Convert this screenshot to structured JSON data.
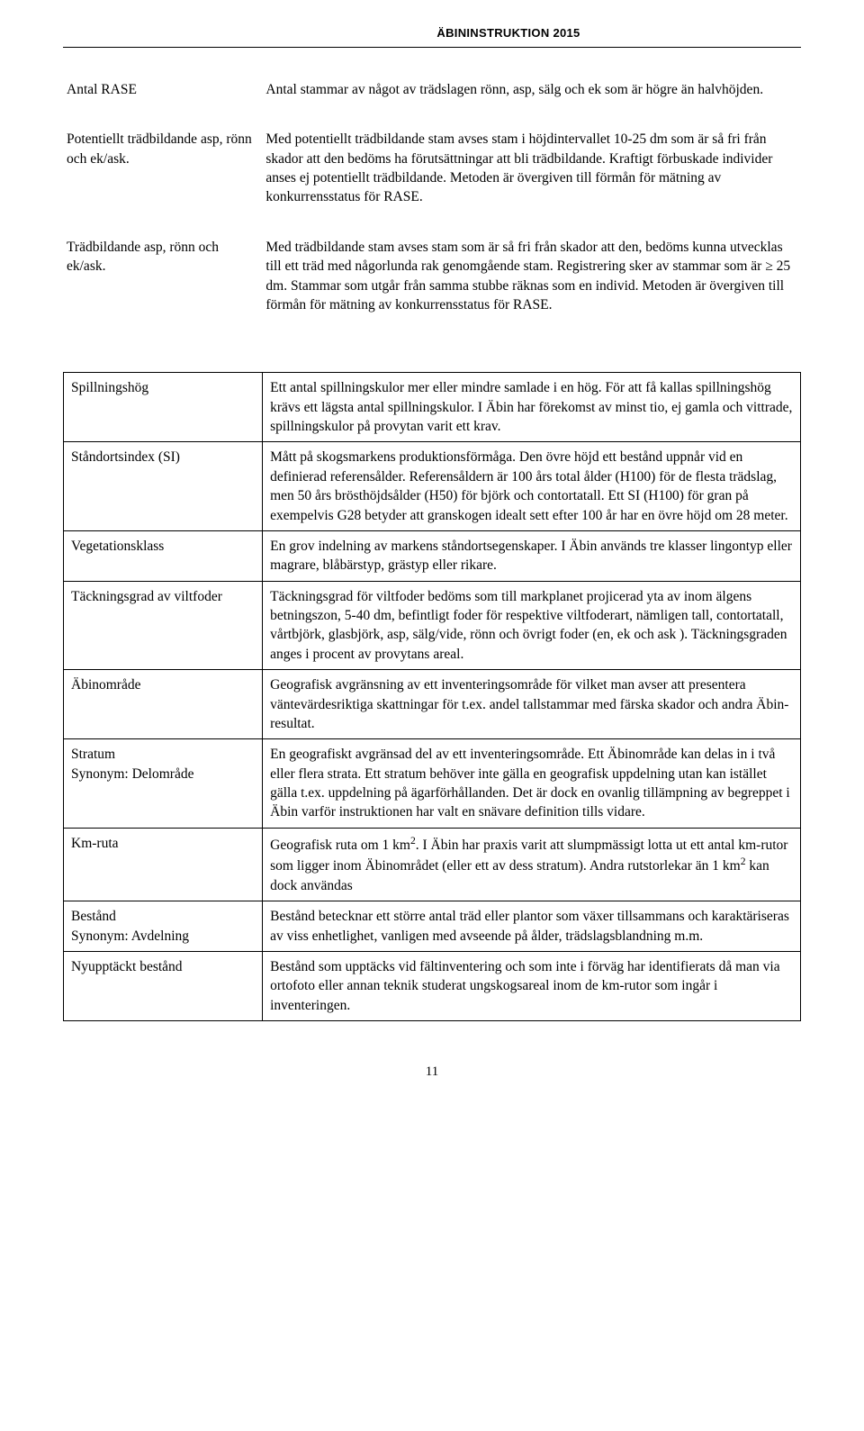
{
  "header": {
    "title": "ÄBININSTRUKTION 2015"
  },
  "page_number": "11",
  "top_rows": [
    {
      "term": "Antal RASE",
      "def": "Antal stammar av något av trädslagen rönn, asp, sälg och ek som är högre än halvhöjden."
    },
    {
      "term": "Potentiellt trädbildande asp, rönn och ek/ask.",
      "def": "Med potentiellt trädbildande stam avses stam i höjdintervallet 10-25 dm som är så fri från skador att den bedöms ha förutsättningar att bli trädbildande. Kraftigt förbuskade individer anses ej potentiellt trädbildande. Metoden är övergiven till förmån för mätning av konkurrensstatus för RASE."
    },
    {
      "term": "Trädbildande asp, rönn och ek/ask.",
      "def": "Med trädbildande stam avses stam som är så fri från skador att den, bedöms kunna utvecklas till ett träd med någorlunda rak genomgående stam. Registrering sker av stammar som är ≥ 25 dm. Stammar som utgår från samma stubbe räknas som en individ. Metoden är övergiven till förmån för mätning av konkurrensstatus för RASE."
    }
  ],
  "box_rows": [
    {
      "term": "Spillningshög",
      "def": "Ett antal spillningskulor mer eller mindre samlade i en hög. För att få kallas spillningshög krävs ett lägsta antal spillningskulor. I Äbin har förekomst av minst tio, ej gamla och vittrade, spillningskulor på provytan varit ett krav."
    },
    {
      "term": "Ståndortsindex (SI)",
      "def": "Mått på skogsmarkens produktionsförmåga. Den övre höjd ett bestånd uppnår vid en definierad referensålder. Referensåldern är 100 års total ålder (H100) för de flesta trädslag, men 50 års brösthöjdsålder (H50) för björk och contortatall. Ett SI (H100) för gran på exempelvis G28 betyder att granskogen idealt sett efter 100 år har en övre höjd om 28 meter."
    },
    {
      "term": "Vegetationsklass",
      "def": "En grov indelning av markens ståndortsegenskaper. I Äbin används tre klasser lingontyp eller magrare, blåbärstyp, grästyp eller rikare."
    },
    {
      "term": "Täckningsgrad av viltfoder",
      "def": "Täckningsgrad för viltfoder bedöms som till markplanet projicerad yta av inom älgens betningszon, 5-40 dm, befintligt foder för respektive viltfoderart, nämligen tall, contortatall, vårtbjörk, glasbjörk, asp, sälg/vide, rönn och övrigt foder (en, ek och ask ). Täckningsgraden anges i procent av provytans areal."
    },
    {
      "term": "Äbinområde",
      "def": "Geografisk avgränsning av ett inventeringsområde för vilket man avser att presentera väntevärdesriktiga skattningar för t.ex. andel tallstammar med färska skador och andra Äbin-resultat."
    },
    {
      "term": "Stratum\nSynonym: Delområde",
      "def": "En geografiskt avgränsad del av ett inventeringsområde. Ett Äbinområde kan delas in i två eller flera strata. Ett stratum behöver inte gälla en geografisk uppdelning utan kan istället gälla t.ex. uppdelning på ägarförhållanden. Det är dock en ovanlig tillämpning av begreppet i Äbin varför instruktionen har valt en snävare definition tills vidare."
    },
    {
      "term": "Km-ruta",
      "def_html": "Geografisk ruta om 1 km<span class=\"sup\">2</span>. I Äbin har praxis varit att slumpmässigt lotta ut ett antal km-rutor som ligger inom Äbinområdet (eller ett av dess stratum). Andra rutstorlekar än 1 km<span class=\"sup\">2</span> kan dock användas"
    },
    {
      "term": "Bestånd\nSynonym: Avdelning",
      "def": "Bestånd betecknar ett större antal träd eller plantor som växer tillsammans och karaktäriseras av viss enhetlighet, vanligen med avseende på ålder, trädslagsblandning m.m."
    },
    {
      "term": "Nyupptäckt bestånd",
      "def": "Bestånd som upptäcks vid fältinventering och som inte i förväg har identifierats då man via ortofoto eller annan teknik studerat ungskogsareal inom de km-rutor som ingår i inventeringen."
    }
  ]
}
